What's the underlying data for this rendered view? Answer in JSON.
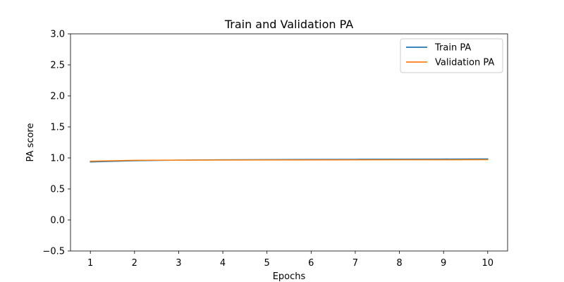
{
  "chart_data": {
    "type": "line",
    "title": "Train and Validation PA",
    "xlabel": "Epochs",
    "ylabel": "PA score",
    "x": [
      1,
      2,
      3,
      4,
      5,
      6,
      7,
      8,
      9,
      10
    ],
    "xlim": [
      0.55,
      10.45
    ],
    "ylim": [
      -0.5,
      3.0
    ],
    "xticks": [
      1,
      2,
      3,
      4,
      5,
      6,
      7,
      8,
      9,
      10
    ],
    "yticks": [
      -0.5,
      0.0,
      0.5,
      1.0,
      1.5,
      2.0,
      2.5,
      3.0
    ],
    "ytick_labels": [
      "−0.5",
      "0.0",
      "0.5",
      "1.0",
      "1.5",
      "2.0",
      "2.5",
      "3.0"
    ],
    "grid": false,
    "legend_position": "upper right",
    "series": [
      {
        "name": "Train PA",
        "color": "#1f77b4",
        "values": [
          0.935,
          0.955,
          0.965,
          0.97,
          0.973,
          0.976,
          0.978,
          0.98,
          0.982,
          0.984
        ]
      },
      {
        "name": "Validation PA",
        "color": "#ff7f0e",
        "values": [
          0.948,
          0.962,
          0.965,
          0.966,
          0.967,
          0.968,
          0.969,
          0.97,
          0.97,
          0.971
        ]
      }
    ]
  }
}
